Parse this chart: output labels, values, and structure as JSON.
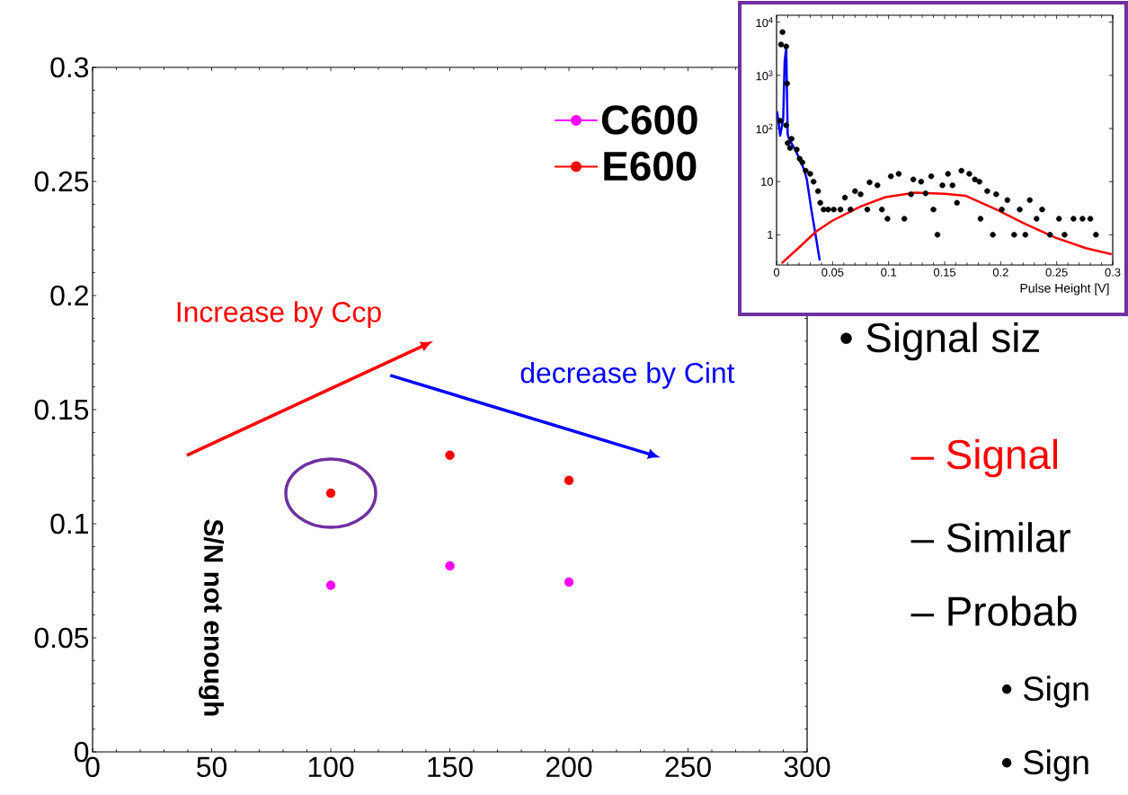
{
  "chart_data": [
    {
      "type": "scatter",
      "x": [
        100,
        150,
        200
      ],
      "series": [
        {
          "name": "C600",
          "color": "#ff00ff",
          "values": [
            0.073,
            0.0815,
            0.0744
          ]
        },
        {
          "name": "E600",
          "color": "#ff0000",
          "values": [
            0.1134,
            0.13,
            0.119
          ]
        }
      ],
      "xlim": [
        0,
        300
      ],
      "xticks": [
        0,
        50,
        100,
        150,
        200,
        250,
        300
      ],
      "ylim": [
        0,
        0.3
      ],
      "yticks": [
        0,
        0.05,
        0.1,
        0.15,
        0.2,
        0.25,
        0.3
      ],
      "marker": "circle",
      "legend": "top right",
      "annotations": [
        "Increase by Ccp",
        "decrease by Cint",
        "S/N not enough"
      ]
    },
    {
      "type": "scatter",
      "xlabel": "Pulse Height [V]",
      "log": "y",
      "marker": "circle",
      "series": [
        {
          "color": "#000000",
          "x": [
            0.0053,
            0.004,
            0.0086,
            0.0094,
            0.0086,
            0.0032,
            0.0099,
            0.0134,
            0.012,
            0.018,
            0.0206,
            0.023,
            0.026,
            0.03,
            0.033,
            0.037,
            0.039,
            0.042,
            0.046,
            0.051,
            0.057,
            0.061,
            0.066,
            0.07,
            0.075,
            0.081,
            0.083,
            0.09,
            0.094,
            0.099,
            0.102,
            0.109,
            0.114,
            0.12,
            0.122,
            0.129,
            0.133,
            0.138,
            0.14,
            0.1436,
            0.148,
            0.153,
            0.157,
            0.161,
            0.165,
            0.172,
            0.177,
            0.181,
            0.182,
            0.188,
            0.193,
            0.196,
            0.201,
            0.206,
            0.212,
            0.217,
            0.222,
            0.226,
            0.232,
            0.237,
            0.244,
            0.252,
            0.257,
            0.265,
            0.273,
            0.28,
            0.285
          ],
          "values": [
            6500,
            3800,
            3500,
            700,
            115,
            140,
            53,
            64,
            43,
            40,
            27,
            23,
            16,
            14,
            10,
            6.6,
            4,
            3,
            3,
            3,
            3,
            5,
            3,
            6.6,
            5.8,
            3,
            9.7,
            8.5,
            3,
            2,
            12.6,
            14,
            2,
            5.8,
            11,
            10,
            6,
            12.6,
            3,
            1,
            8.5,
            14,
            8.5,
            4,
            16,
            14,
            11,
            10,
            2,
            6.6,
            1,
            5.8,
            3,
            4.5,
            1,
            3,
            1,
            4.5,
            2,
            3,
            1,
            2,
            1,
            2,
            2,
            2,
            1
          ]
        },
        {
          "type": "line",
          "marker": "none",
          "color": "#0000ff",
          "x": [
            0.0005,
            0.0032,
            0.0059,
            0.0072,
            0.0086,
            0.0099,
            0.011,
            0.0166,
            0.0245,
            0.027,
            0.031,
            0.035,
            0.0385
          ],
          "values": [
            208,
            73,
            150,
            1770,
            3400,
            78,
            64,
            40,
            17,
            11,
            3,
            0.94,
            0.33
          ]
        },
        {
          "type": "line",
          "marker": "none",
          "color": "#ff0000",
          "x": [
            0.0045,
            0.022,
            0.035,
            0.049,
            0.075,
            0.097,
            0.124,
            0.15,
            0.169,
            0.196,
            0.222,
            0.249,
            0.276,
            0.299
          ],
          "values": [
            0.29,
            0.63,
            1.14,
            1.8,
            3.4,
            5.1,
            6.2,
            5.9,
            5.4,
            3,
            1.6,
            0.88,
            0.56,
            0.43
          ]
        }
      ],
      "xlim": [
        0,
        0.3
      ],
      "xticks": [
        0,
        0.05,
        0.1,
        0.15,
        0.2,
        0.25,
        0.3
      ],
      "ylim": [
        0.27,
        13500
      ],
      "yticks": [
        1,
        10,
        {
          "value": 100,
          "label": "10$^{2}$"
        },
        {
          "value": 1000,
          "label": "10$^{3}$"
        },
        {
          "value": 10000,
          "label": "10$^{4}$"
        }
      ]
    },
    {
      "type": "other",
      "annotations": [
        "• Signal siz",
        "– Signal",
        "– Similar",
        "– Probab",
        "• Sign",
        "• Sign"
      ]
    }
  ]
}
